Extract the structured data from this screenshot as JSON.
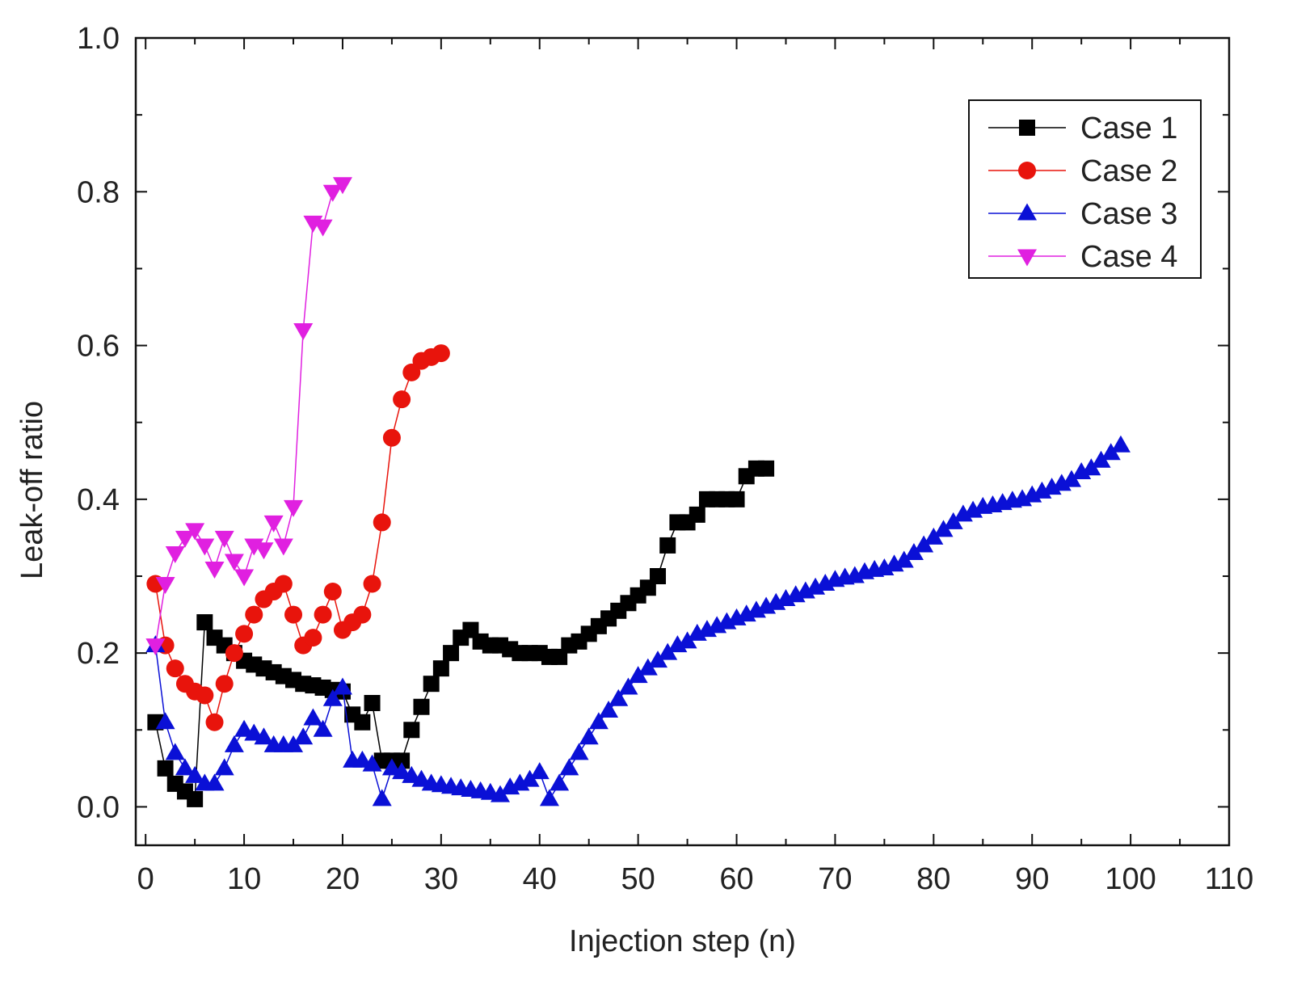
{
  "chart_data": {
    "type": "line",
    "title": "",
    "xlabel": "Injection step (n)",
    "ylabel": "Leak-off ratio",
    "xlim": [
      -1,
      110
    ],
    "ylim": [
      -0.05,
      1.0
    ],
    "xticks": [
      0,
      10,
      20,
      30,
      40,
      50,
      60,
      70,
      80,
      90,
      100,
      110
    ],
    "xtick_labels": [
      "0",
      "10",
      "20",
      "30",
      "40",
      "50",
      "60",
      "70",
      "80",
      "90",
      "100",
      "110"
    ],
    "yticks": [
      0.0,
      0.2,
      0.4,
      0.6,
      0.8,
      1.0
    ],
    "ytick_labels": [
      "0.0",
      "0.2",
      "0.4",
      "0.6",
      "0.8",
      "1.0"
    ],
    "grid": false,
    "legend_position": "top-right",
    "series": [
      {
        "name": "Case 1",
        "color": "#000000",
        "marker": "square",
        "x": [
          1,
          2,
          3,
          4,
          5,
          6,
          7,
          8,
          9,
          10,
          11,
          12,
          13,
          14,
          15,
          16,
          17,
          18,
          19,
          20,
          21,
          22,
          23,
          24,
          25,
          26,
          27,
          28,
          29,
          30,
          31,
          32,
          33,
          34,
          35,
          36,
          37,
          38,
          39,
          40,
          41,
          42,
          43,
          44,
          45,
          46,
          47,
          48,
          49,
          50,
          51,
          52,
          53,
          54,
          55,
          56,
          57,
          58,
          59,
          60,
          61,
          62,
          63
        ],
        "y": [
          0.11,
          0.05,
          0.03,
          0.02,
          0.01,
          0.24,
          0.22,
          0.21,
          0.2,
          0.19,
          0.185,
          0.18,
          0.175,
          0.17,
          0.165,
          0.16,
          0.158,
          0.155,
          0.152,
          0.15,
          0.12,
          0.11,
          0.135,
          0.06,
          0.06,
          0.06,
          0.1,
          0.13,
          0.16,
          0.18,
          0.2,
          0.22,
          0.23,
          0.215,
          0.21,
          0.21,
          0.205,
          0.2,
          0.2,
          0.2,
          0.195,
          0.195,
          0.21,
          0.215,
          0.225,
          0.235,
          0.245,
          0.255,
          0.265,
          0.275,
          0.285,
          0.3,
          0.34,
          0.37,
          0.37,
          0.38,
          0.4,
          0.4,
          0.4,
          0.4,
          0.43,
          0.44,
          0.44
        ]
      },
      {
        "name": "Case 2",
        "color": "#e8140c",
        "marker": "circle",
        "x": [
          1,
          2,
          3,
          4,
          5,
          6,
          7,
          8,
          9,
          10,
          11,
          12,
          13,
          14,
          15,
          16,
          17,
          18,
          19,
          20,
          21,
          22,
          23,
          24,
          25,
          26,
          27,
          28,
          29,
          30
        ],
        "y": [
          0.29,
          0.21,
          0.18,
          0.16,
          0.15,
          0.145,
          0.11,
          0.16,
          0.2,
          0.225,
          0.25,
          0.27,
          0.28,
          0.29,
          0.25,
          0.21,
          0.22,
          0.25,
          0.28,
          0.23,
          0.24,
          0.25,
          0.29,
          0.37,
          0.48,
          0.53,
          0.565,
          0.58,
          0.585,
          0.59
        ]
      },
      {
        "name": "Case 3",
        "color": "#0a10d6",
        "marker": "triangle-up",
        "x": [
          1,
          2,
          3,
          4,
          5,
          6,
          7,
          8,
          9,
          10,
          11,
          12,
          13,
          14,
          15,
          16,
          17,
          18,
          19,
          20,
          21,
          22,
          23,
          24,
          25,
          26,
          27,
          28,
          29,
          30,
          31,
          32,
          33,
          34,
          35,
          36,
          37,
          38,
          39,
          40,
          41,
          42,
          43,
          44,
          45,
          46,
          47,
          48,
          49,
          50,
          51,
          52,
          53,
          54,
          55,
          56,
          57,
          58,
          59,
          60,
          61,
          62,
          63,
          64,
          65,
          66,
          67,
          68,
          69,
          70,
          71,
          72,
          73,
          74,
          75,
          76,
          77,
          78,
          79,
          80,
          81,
          82,
          83,
          84,
          85,
          86,
          87,
          88,
          89,
          90,
          91,
          92,
          93,
          94,
          95,
          96,
          97,
          98,
          99
        ],
        "y": [
          0.21,
          0.11,
          0.07,
          0.05,
          0.04,
          0.03,
          0.03,
          0.05,
          0.08,
          0.1,
          0.095,
          0.09,
          0.08,
          0.08,
          0.08,
          0.09,
          0.115,
          0.1,
          0.14,
          0.155,
          0.06,
          0.06,
          0.055,
          0.01,
          0.05,
          0.045,
          0.04,
          0.035,
          0.03,
          0.028,
          0.026,
          0.024,
          0.022,
          0.02,
          0.018,
          0.015,
          0.025,
          0.03,
          0.035,
          0.045,
          0.01,
          0.03,
          0.05,
          0.07,
          0.09,
          0.11,
          0.125,
          0.14,
          0.155,
          0.17,
          0.18,
          0.19,
          0.2,
          0.21,
          0.215,
          0.225,
          0.23,
          0.235,
          0.24,
          0.245,
          0.25,
          0.255,
          0.26,
          0.265,
          0.27,
          0.275,
          0.28,
          0.285,
          0.29,
          0.295,
          0.298,
          0.3,
          0.305,
          0.308,
          0.31,
          0.315,
          0.32,
          0.33,
          0.34,
          0.35,
          0.36,
          0.37,
          0.38,
          0.385,
          0.39,
          0.392,
          0.395,
          0.398,
          0.4,
          0.405,
          0.41,
          0.415,
          0.42,
          0.425,
          0.435,
          0.44,
          0.45,
          0.46,
          0.47
        ]
      },
      {
        "name": "Case 4",
        "color": "#e020e0",
        "marker": "triangle-down",
        "x": [
          1,
          2,
          3,
          4,
          5,
          6,
          7,
          8,
          9,
          10,
          11,
          12,
          13,
          14,
          15,
          16,
          17,
          18,
          19,
          20
        ],
        "y": [
          0.21,
          0.29,
          0.33,
          0.35,
          0.36,
          0.34,
          0.31,
          0.35,
          0.32,
          0.3,
          0.34,
          0.335,
          0.37,
          0.34,
          0.39,
          0.62,
          0.76,
          0.755,
          0.8,
          0.81
        ]
      }
    ]
  }
}
